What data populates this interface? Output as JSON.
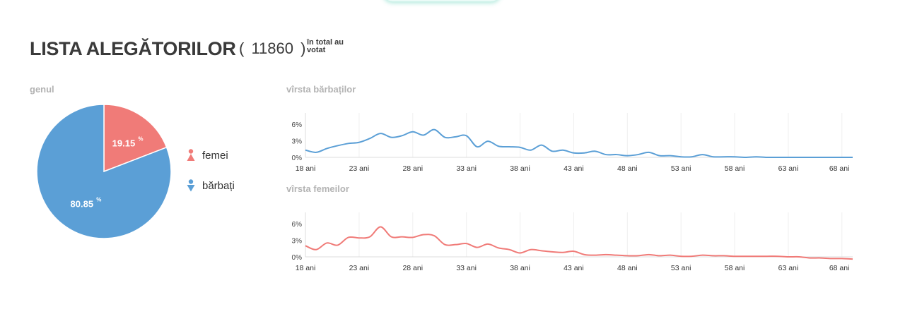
{
  "header": {
    "title": "LISTA ALEGĂTORILOR",
    "count_open": "(",
    "count": "11860",
    "count_close": ")",
    "note_line1": "în total au",
    "note_line2": "votat"
  },
  "colors": {
    "female": "#f07b78",
    "male": "#5b9fd6",
    "label_gray": "#b3b3b3"
  },
  "sections": {
    "gender": "genul",
    "male_age": "vîrsta bărbaților",
    "female_age": "vîrsta femeilor"
  },
  "legend": [
    {
      "label": "femei",
      "icon": "female-person-icon"
    },
    {
      "label": "bărbați",
      "icon": "male-person-icon"
    }
  ],
  "chart_data": [
    {
      "type": "pie",
      "title": "genul",
      "slices": [
        {
          "label": "femei",
          "value": 19.15,
          "display": "19.15",
          "unit": "%",
          "color": "#f07b78"
        },
        {
          "label": "bărbați",
          "value": 80.85,
          "display": "80.85",
          "unit": "%",
          "color": "#5b9fd6"
        }
      ]
    },
    {
      "type": "line",
      "title": "vîrsta bărbaților",
      "color": "#5b9fd6",
      "x": [
        18,
        19,
        20,
        21,
        22,
        23,
        24,
        25,
        26,
        27,
        28,
        29,
        30,
        31,
        32,
        33,
        34,
        35,
        36,
        37,
        38,
        39,
        40,
        41,
        42,
        43,
        44,
        45,
        46,
        47,
        48,
        49,
        50,
        51,
        52,
        53,
        54,
        55,
        56,
        57,
        58,
        59,
        60,
        61,
        62,
        63,
        64,
        65,
        66,
        67,
        68,
        69
      ],
      "values": [
        1.3,
        0.9,
        1.6,
        2.1,
        2.5,
        2.7,
        3.4,
        4.3,
        3.6,
        3.9,
        4.6,
        4.0,
        5.0,
        3.6,
        3.7,
        3.9,
        1.9,
        2.9,
        2.0,
        1.9,
        1.8,
        1.3,
        2.2,
        1.1,
        1.3,
        0.8,
        0.8,
        1.1,
        0.5,
        0.5,
        0.3,
        0.5,
        0.9,
        0.3,
        0.3,
        0.1,
        0.1,
        0.5,
        0.1,
        0.1,
        0.1,
        0.0,
        0.1,
        0.0,
        0.0,
        0.0,
        0.0,
        0.0,
        0.0,
        0.0,
        0.0,
        0.0
      ],
      "ylim": [
        0,
        8
      ],
      "yticks": [
        "0%",
        "3%",
        "6%"
      ],
      "yticks_values": [
        0,
        3,
        6
      ],
      "xticks": [
        "18 ani",
        "23 ani",
        "28 ani",
        "33 ani",
        "38 ani",
        "43 ani",
        "48 ani",
        "53 ani",
        "58 ani",
        "63 ani",
        "68 ani"
      ],
      "xticks_values": [
        18,
        23,
        28,
        33,
        38,
        43,
        48,
        53,
        58,
        63,
        68
      ],
      "grid": "vertical"
    },
    {
      "type": "line",
      "title": "vîrsta femeilor",
      "color": "#f07b78",
      "x": [
        18,
        19,
        20,
        21,
        22,
        23,
        24,
        25,
        26,
        27,
        28,
        29,
        30,
        31,
        32,
        33,
        34,
        35,
        36,
        37,
        38,
        39,
        40,
        41,
        42,
        43,
        44,
        45,
        46,
        47,
        48,
        49,
        50,
        51,
        52,
        53,
        54,
        55,
        56,
        57,
        58,
        59,
        60,
        61,
        62,
        63,
        64,
        65,
        66,
        67,
        68,
        69
      ],
      "values": [
        2.0,
        1.3,
        2.5,
        2.1,
        3.5,
        3.4,
        3.6,
        5.4,
        3.6,
        3.6,
        3.5,
        4.0,
        3.8,
        2.2,
        2.2,
        2.4,
        1.7,
        2.3,
        1.6,
        1.3,
        0.7,
        1.3,
        1.1,
        0.9,
        0.8,
        1.0,
        0.4,
        0.3,
        0.4,
        0.3,
        0.2,
        0.2,
        0.4,
        0.2,
        0.3,
        0.1,
        0.1,
        0.3,
        0.2,
        0.2,
        0.1,
        0.1,
        0.1,
        0.1,
        0.1,
        0.0,
        0.0,
        -0.2,
        -0.2,
        -0.3,
        -0.3,
        -0.4
      ],
      "ylim": [
        0,
        8
      ],
      "yticks": [
        "0%",
        "3%",
        "6%"
      ],
      "yticks_values": [
        0,
        3,
        6
      ],
      "xticks": [
        "18 ani",
        "23 ani",
        "28 ani",
        "33 ani",
        "38 ani",
        "43 ani",
        "48 ani",
        "53 ani",
        "58 ani",
        "63 ani",
        "68 ani"
      ],
      "xticks_values": [
        18,
        23,
        28,
        33,
        38,
        43,
        48,
        53,
        58,
        63,
        68
      ],
      "grid": "vertical"
    }
  ]
}
